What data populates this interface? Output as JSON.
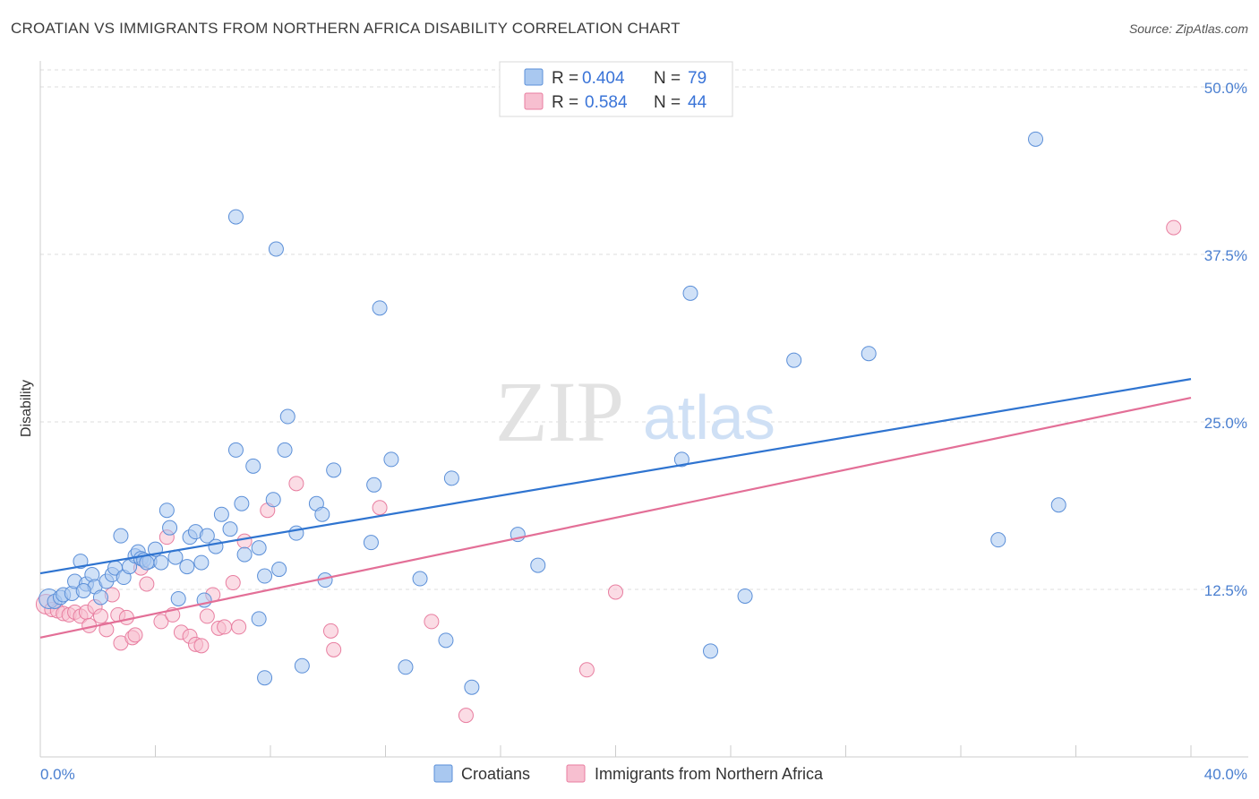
{
  "title": "CROATIAN VS IMMIGRANTS FROM NORTHERN AFRICA DISABILITY CORRELATION CHART",
  "source": "Source: ZipAtlas.com",
  "watermark": {
    "zip": "ZIP",
    "atlas": "atlas"
  },
  "colors": {
    "blue_fill": "#a9c8f0",
    "blue_stroke": "#5b8fd8",
    "blue_line": "#2f74d0",
    "pink_fill": "#f7bfd0",
    "pink_stroke": "#e87ea0",
    "pink_line": "#e36f97",
    "tick_text": "#4a7fd0",
    "grid": "#dddddd"
  },
  "legend": {
    "r_label": "R =",
    "n_label": "N =",
    "rows": [
      {
        "r": "0.404",
        "n": "79"
      },
      {
        "r": "0.584",
        "n": "44"
      }
    ]
  },
  "chart_data": {
    "type": "scatter",
    "title": "CROATIAN VS IMMIGRANTS FROM NORTHERN AFRICA DISABILITY CORRELATION CHART",
    "xlabel": "",
    "ylabel": "Disability",
    "xlim": [
      0,
      40
    ],
    "ylim": [
      0,
      50
    ],
    "x_tick_labels": [
      "0.0%",
      "40.0%"
    ],
    "y_ticks": [
      12.5,
      25.0,
      37.5,
      50.0
    ],
    "y_tick_labels": [
      "12.5%",
      "25.0%",
      "37.5%",
      "50.0%"
    ],
    "grid": true,
    "legend_position": "top-center",
    "series": [
      {
        "name": "Croatians",
        "r": 0.404,
        "n": 79,
        "trend": {
          "x": [
            0,
            40
          ],
          "y": [
            13.7,
            28.2
          ]
        },
        "points": [
          [
            0.3,
            11.8
          ],
          [
            0.5,
            11.6
          ],
          [
            0.7,
            11.9
          ],
          [
            0.8,
            12.1
          ],
          [
            1.1,
            12.2
          ],
          [
            1.2,
            13.1
          ],
          [
            1.4,
            14.6
          ],
          [
            1.6,
            12.9
          ],
          [
            1.8,
            13.6
          ],
          [
            1.9,
            12.7
          ],
          [
            2.1,
            11.9
          ],
          [
            2.3,
            13.1
          ],
          [
            2.5,
            13.6
          ],
          [
            2.6,
            14.1
          ],
          [
            2.8,
            16.5
          ],
          [
            2.9,
            13.4
          ],
          [
            3.1,
            14.2
          ],
          [
            3.3,
            15.0
          ],
          [
            3.4,
            15.3
          ],
          [
            3.5,
            14.8
          ],
          [
            3.6,
            14.7
          ],
          [
            3.8,
            14.6
          ],
          [
            4.0,
            15.5
          ],
          [
            4.2,
            14.5
          ],
          [
            4.4,
            18.4
          ],
          [
            4.5,
            17.1
          ],
          [
            4.7,
            14.9
          ],
          [
            5.1,
            14.2
          ],
          [
            5.2,
            16.4
          ],
          [
            5.4,
            16.8
          ],
          [
            5.6,
            14.5
          ],
          [
            5.8,
            16.5
          ],
          [
            6.1,
            15.7
          ],
          [
            6.3,
            18.1
          ],
          [
            6.6,
            17.0
          ],
          [
            6.8,
            22.9
          ],
          [
            7.0,
            18.9
          ],
          [
            7.1,
            15.1
          ],
          [
            7.4,
            21.7
          ],
          [
            7.6,
            15.6
          ],
          [
            7.8,
            13.5
          ],
          [
            8.1,
            19.2
          ],
          [
            8.3,
            14.0
          ],
          [
            8.5,
            22.9
          ],
          [
            8.6,
            25.4
          ],
          [
            8.9,
            16.7
          ],
          [
            9.6,
            18.9
          ],
          [
            9.8,
            18.1
          ],
          [
            9.9,
            13.2
          ],
          [
            10.2,
            21.4
          ],
          [
            11.5,
            16.0
          ],
          [
            11.6,
            20.3
          ],
          [
            12.2,
            22.2
          ],
          [
            13.2,
            13.3
          ],
          [
            14.3,
            20.8
          ],
          [
            16.6,
            16.6
          ],
          [
            17.3,
            14.3
          ],
          [
            4.8,
            11.8
          ],
          [
            5.7,
            11.7
          ],
          [
            7.6,
            10.3
          ],
          [
            7.8,
            5.9
          ],
          [
            9.1,
            6.8
          ],
          [
            12.7,
            6.7
          ],
          [
            14.1,
            8.7
          ],
          [
            15.0,
            5.2
          ],
          [
            6.8,
            40.3
          ],
          [
            8.2,
            37.9
          ],
          [
            11.8,
            33.5
          ],
          [
            22.6,
            34.6
          ],
          [
            26.2,
            29.6
          ],
          [
            28.8,
            30.1
          ],
          [
            22.3,
            22.2
          ],
          [
            33.3,
            16.2
          ],
          [
            35.4,
            18.8
          ],
          [
            34.6,
            46.1
          ],
          [
            23.3,
            7.9
          ],
          [
            24.5,
            12.0
          ],
          [
            1.5,
            12.4
          ],
          [
            3.7,
            14.5
          ]
        ]
      },
      {
        "name": "Immigrants from Northern Africa",
        "r": 0.584,
        "n": 44,
        "trend": {
          "x": [
            0,
            40
          ],
          "y": [
            8.9,
            26.8
          ]
        },
        "points": [
          [
            0.2,
            11.4
          ],
          [
            0.4,
            11.0
          ],
          [
            0.6,
            10.9
          ],
          [
            0.8,
            10.7
          ],
          [
            1.0,
            10.6
          ],
          [
            1.2,
            10.8
          ],
          [
            1.4,
            10.5
          ],
          [
            1.6,
            10.8
          ],
          [
            1.7,
            9.8
          ],
          [
            1.9,
            11.2
          ],
          [
            2.1,
            10.5
          ],
          [
            2.3,
            9.5
          ],
          [
            2.5,
            12.1
          ],
          [
            2.7,
            10.6
          ],
          [
            2.8,
            8.5
          ],
          [
            3.0,
            10.4
          ],
          [
            3.2,
            8.9
          ],
          [
            3.3,
            9.1
          ],
          [
            3.5,
            14.1
          ],
          [
            3.7,
            12.9
          ],
          [
            4.2,
            10.1
          ],
          [
            4.4,
            16.4
          ],
          [
            4.6,
            10.6
          ],
          [
            4.9,
            9.3
          ],
          [
            5.2,
            9.0
          ],
          [
            5.4,
            8.4
          ],
          [
            5.6,
            8.3
          ],
          [
            5.8,
            10.5
          ],
          [
            6.0,
            12.1
          ],
          [
            6.2,
            9.6
          ],
          [
            6.4,
            9.7
          ],
          [
            6.7,
            13.0
          ],
          [
            6.9,
            9.7
          ],
          [
            7.1,
            16.1
          ],
          [
            7.9,
            18.4
          ],
          [
            8.9,
            20.4
          ],
          [
            10.1,
            9.4
          ],
          [
            10.2,
            8.0
          ],
          [
            11.8,
            18.6
          ],
          [
            13.6,
            10.1
          ],
          [
            14.8,
            3.1
          ],
          [
            19.0,
            6.5
          ],
          [
            20.0,
            12.3
          ],
          [
            39.4,
            39.5
          ]
        ]
      }
    ]
  },
  "bottom_legend": [
    "Croatians",
    "Immigrants from Northern Africa"
  ]
}
